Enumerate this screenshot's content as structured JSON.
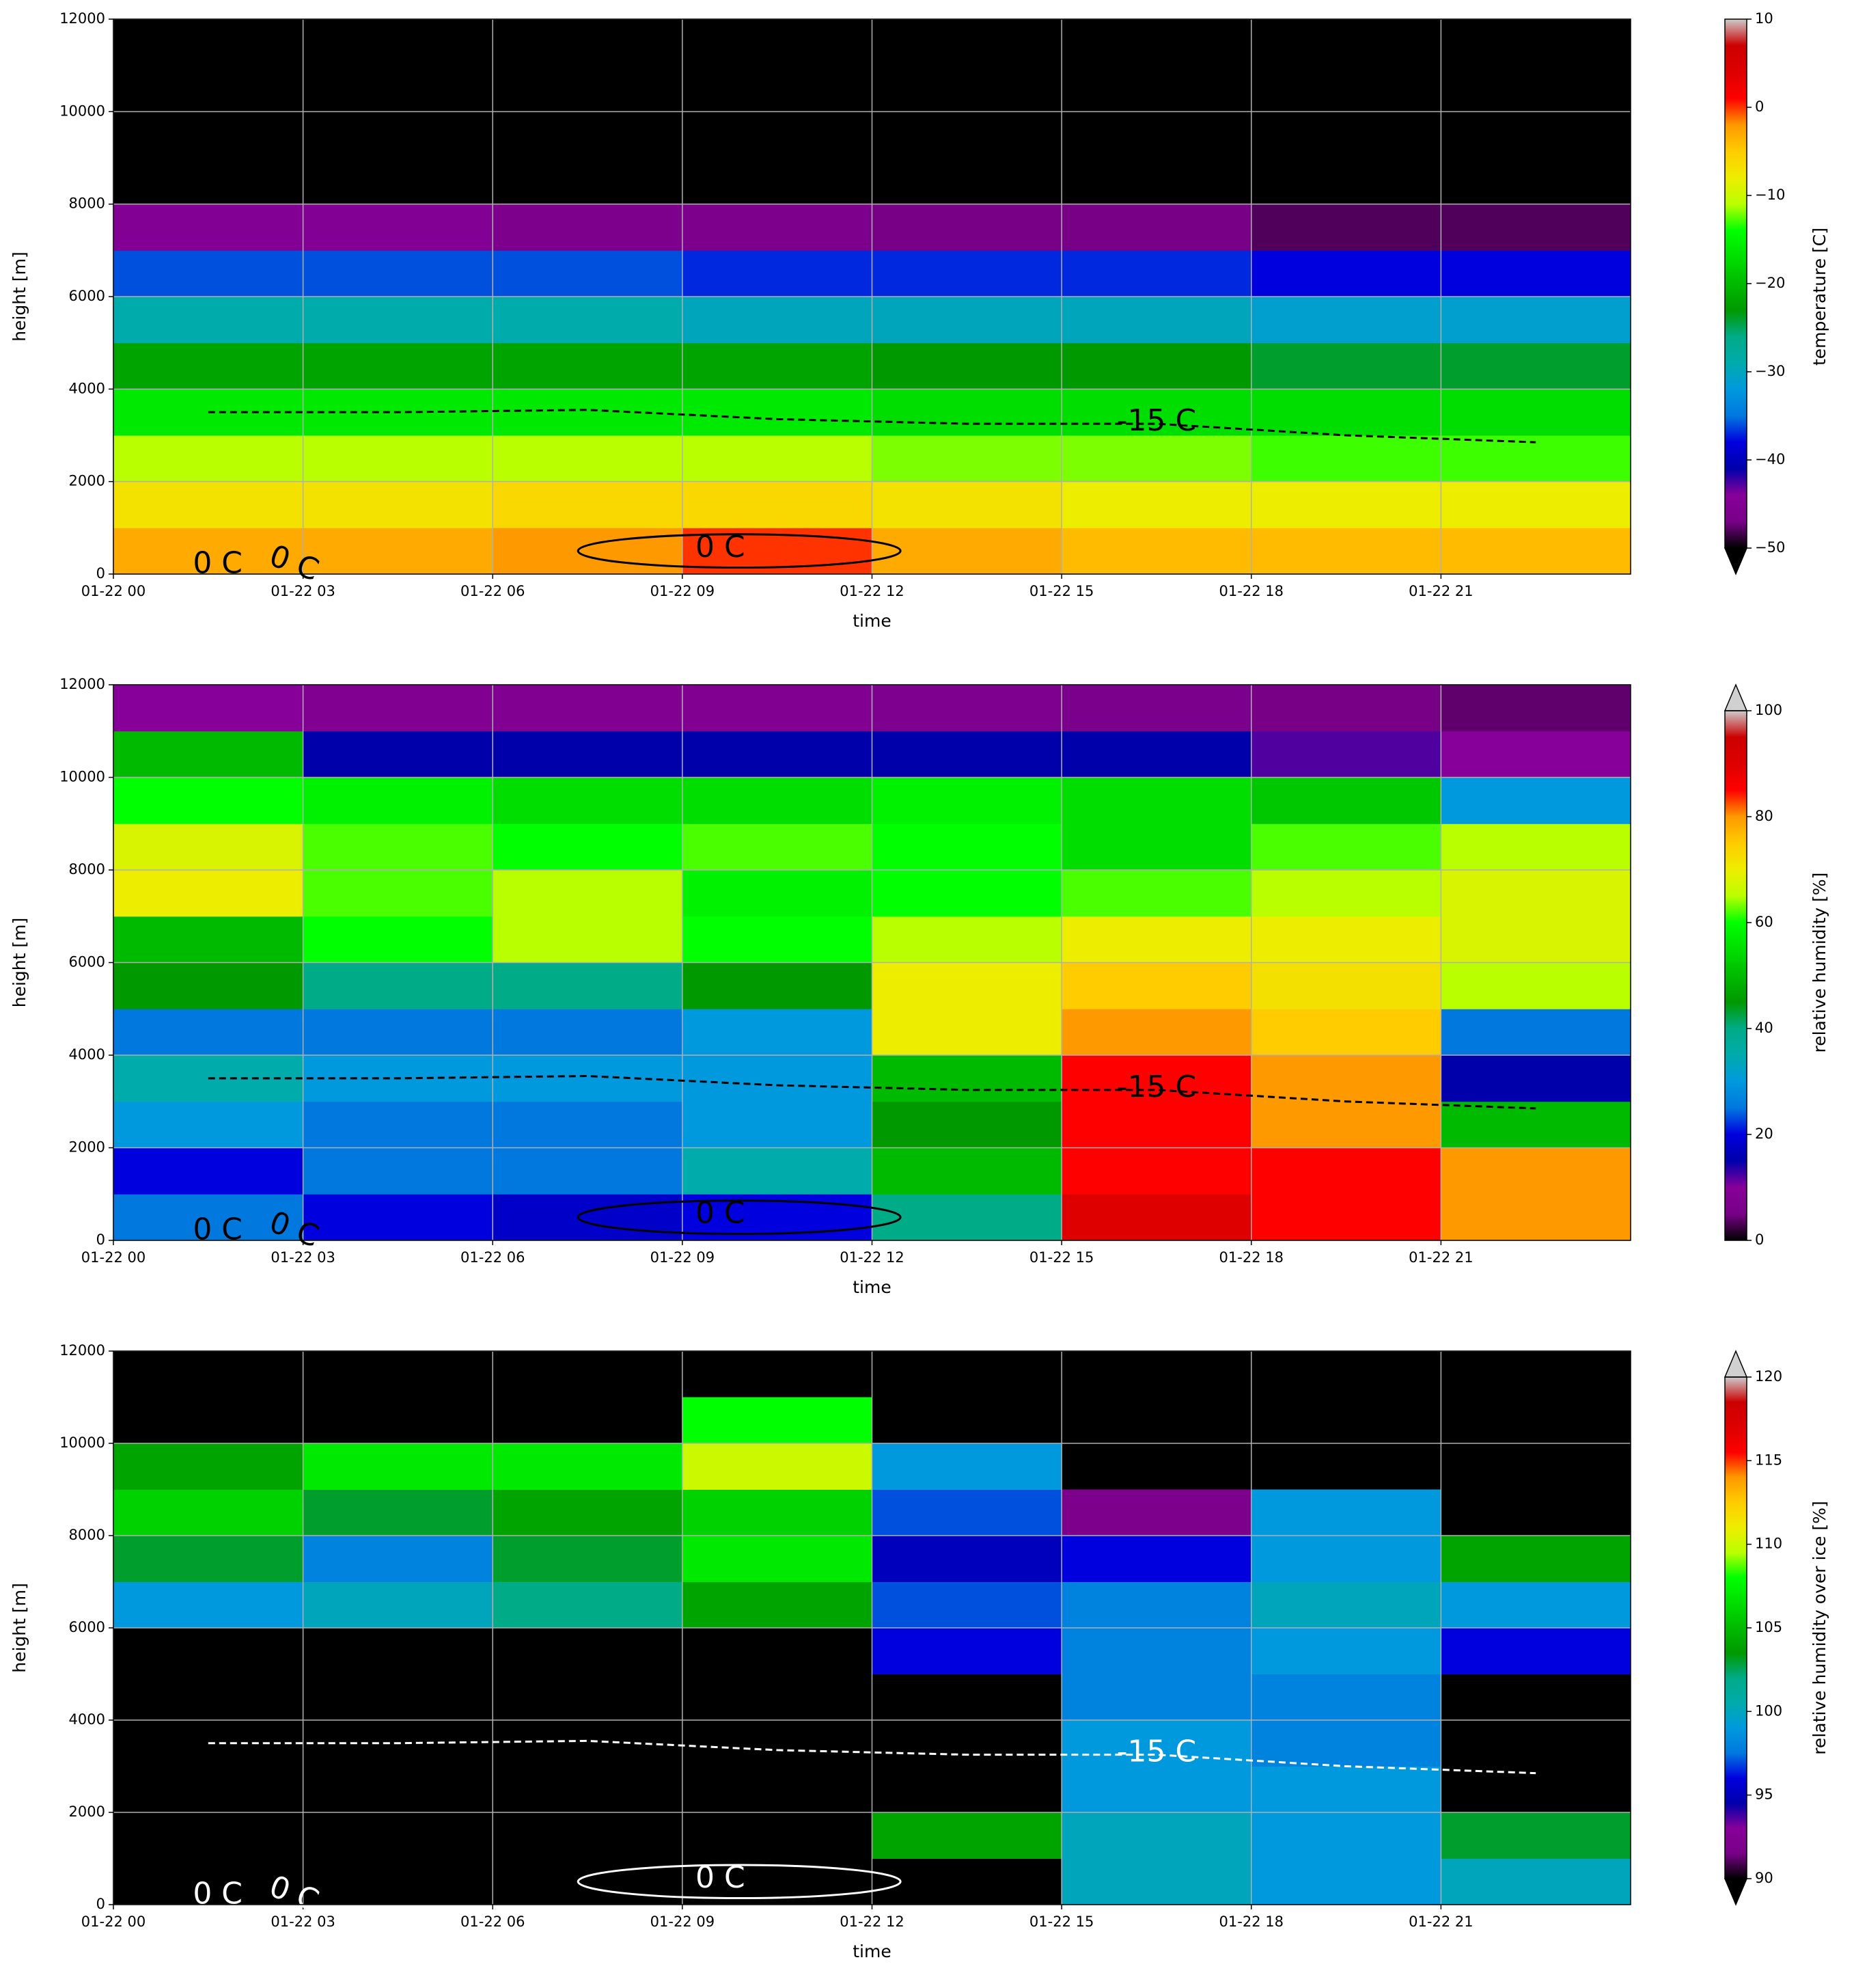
{
  "chart_data": [
    {
      "type": "heatmap",
      "xlabel": "time",
      "ylabel": "height [m]",
      "x": [
        "01-22 00",
        "01-22 03",
        "01-22 06",
        "01-22 09",
        "01-22 12",
        "01-22 15",
        "01-22 18",
        "01-22 21"
      ],
      "y": [
        0,
        1000,
        2000,
        3000,
        4000,
        5000,
        6000,
        7000,
        8000,
        9000,
        10000,
        11000
      ],
      "ylim": [
        0,
        12000
      ],
      "yticks": [
        0,
        2000,
        4000,
        6000,
        8000,
        10000,
        12000
      ],
      "grid": true,
      "values": [
        [
          -3,
          -3,
          -2,
          0,
          -3,
          -4,
          -4,
          -4
        ],
        [
          -7,
          -7,
          -6,
          -6,
          -7,
          -8,
          -8,
          -8
        ],
        [
          -11,
          -11,
          -11,
          -11,
          -12,
          -12,
          -13,
          -13
        ],
        [
          -16,
          -16,
          -16,
          -16,
          -17,
          -17,
          -17,
          -17
        ],
        [
          -22,
          -22,
          -22,
          -22,
          -23,
          -23,
          -24,
          -24
        ],
        [
          -29,
          -29,
          -29,
          -30,
          -30,
          -30,
          -31,
          -31
        ],
        [
          -36,
          -36,
          -36,
          -37,
          -37,
          -37,
          -38,
          -38
        ],
        [
          -45,
          -45,
          -46,
          -46,
          -47,
          -47,
          -48,
          -48
        ],
        [
          null,
          null,
          null,
          null,
          null,
          null,
          null,
          null
        ],
        [
          null,
          null,
          null,
          null,
          null,
          null,
          null,
          null
        ],
        [
          null,
          null,
          null,
          null,
          null,
          null,
          null,
          null
        ],
        [
          null,
          null,
          null,
          null,
          null,
          null,
          null,
          null
        ]
      ],
      "colormap": "nipy_spectral",
      "clim": [
        -50,
        10
      ],
      "extend": "min",
      "colorbar_label": "temperature [C]",
      "colorbar_ticks": [
        {
          "value": -50,
          "label": "−50"
        },
        {
          "value": -40,
          "label": "−40"
        },
        {
          "value": -30,
          "label": "−30"
        },
        {
          "value": -20,
          "label": "−20"
        },
        {
          "value": -10,
          "label": "−10"
        },
        0,
        10
      ],
      "contour_color": "#000000",
      "contours": [
        {
          "label": "-15 C",
          "values": [
            3500,
            3500,
            3550,
            3350,
            3250,
            3250,
            3000,
            2850
          ]
        }
      ],
      "contour_labels": [
        "0 C",
        "0 C",
        "0 C"
      ]
    },
    {
      "type": "heatmap",
      "xlabel": "time",
      "ylabel": "height [m]",
      "x": [
        "01-22 00",
        "01-22 03",
        "01-22 06",
        "01-22 09",
        "01-22 12",
        "01-22 15",
        "01-22 18",
        "01-22 21"
      ],
      "y": [
        0,
        1000,
        2000,
        3000,
        4000,
        5000,
        6000,
        7000,
        8000,
        9000,
        10000,
        11000
      ],
      "ylim": [
        0,
        12000
      ],
      "yticks": [
        0,
        2000,
        4000,
        6000,
        8000,
        10000,
        12000
      ],
      "grid": true,
      "values": [
        [
          25,
          20,
          18,
          20,
          40,
          90,
          85,
          80
        ],
        [
          20,
          25,
          25,
          35,
          50,
          85,
          85,
          80
        ],
        [
          30,
          25,
          25,
          30,
          45,
          85,
          80,
          50
        ],
        [
          35,
          30,
          30,
          30,
          50,
          85,
          80,
          15
        ],
        [
          25,
          25,
          25,
          30,
          70,
          80,
          75,
          25
        ],
        [
          45,
          40,
          40,
          45,
          70,
          75,
          72,
          65
        ],
        [
          50,
          60,
          65,
          60,
          65,
          70,
          70,
          68
        ],
        [
          70,
          62,
          65,
          58,
          60,
          62,
          65,
          68
        ],
        [
          68,
          62,
          60,
          62,
          60,
          55,
          62,
          65
        ],
        [
          60,
          58,
          55,
          55,
          58,
          55,
          52,
          30
        ],
        [
          50,
          15,
          15,
          15,
          15,
          15,
          12,
          10
        ],
        [
          10,
          8,
          8,
          8,
          7,
          6,
          5,
          4
        ]
      ],
      "colormap": "nipy_spectral",
      "clim": [
        0,
        100
      ],
      "extend": "max",
      "colorbar_label": "relative humidity [%]",
      "colorbar_ticks": [
        0,
        20,
        40,
        60,
        80,
        100
      ],
      "contour_color": "#000000",
      "contours": [
        {
          "label": "-15 C",
          "values": [
            3500,
            3500,
            3550,
            3350,
            3250,
            3250,
            3000,
            2850
          ]
        }
      ],
      "contour_labels": [
        "0 C",
        "0 C",
        "0 C"
      ]
    },
    {
      "type": "heatmap",
      "xlabel": "time",
      "ylabel": "height [m]",
      "x": [
        "01-22 00",
        "01-22 03",
        "01-22 06",
        "01-22 09",
        "01-22 12",
        "01-22 15",
        "01-22 18",
        "01-22 21"
      ],
      "y": [
        0,
        1000,
        2000,
        3000,
        4000,
        5000,
        6000,
        7000,
        8000,
        9000,
        10000,
        11000
      ],
      "ylim": [
        0,
        12000
      ],
      "yticks": [
        0,
        2000,
        4000,
        6000,
        8000,
        10000,
        12000
      ],
      "grid": true,
      "values": [
        [
          null,
          null,
          null,
          null,
          null,
          100,
          99,
          100
        ],
        [
          null,
          null,
          null,
          null,
          104,
          100,
          99,
          103
        ],
        [
          null,
          null,
          null,
          null,
          null,
          99,
          99,
          null
        ],
        [
          null,
          null,
          null,
          null,
          null,
          99,
          98,
          null
        ],
        [
          null,
          null,
          null,
          null,
          null,
          98,
          98,
          null
        ],
        [
          null,
          null,
          null,
          null,
          96,
          98,
          99,
          96
        ],
        [
          99,
          100,
          102,
          104,
          97,
          98,
          100,
          99
        ],
        [
          103,
          98,
          103,
          107,
          95,
          96,
          99,
          104
        ],
        [
          106,
          103,
          104,
          106,
          97,
          92,
          99,
          null
        ],
        [
          104,
          107,
          107,
          110,
          99,
          null,
          null,
          null
        ],
        [
          null,
          null,
          null,
          108,
          null,
          null,
          null,
          null
        ],
        [
          null,
          null,
          null,
          null,
          null,
          null,
          null,
          null
        ]
      ],
      "colormap": "nipy_spectral",
      "clim": [
        90,
        120
      ],
      "extend": "both",
      "colorbar_label": "relative humidity over ice [%]",
      "colorbar_ticks": [
        90,
        95,
        100,
        105,
        110,
        115,
        120
      ],
      "contour_color": "#ffffff",
      "contours": [
        {
          "label": "-15 C",
          "values": [
            3500,
            3500,
            3550,
            3350,
            3250,
            3250,
            3000,
            2850
          ]
        }
      ],
      "contour_labels": [
        "0 C",
        "0 C",
        "0 C"
      ]
    }
  ]
}
